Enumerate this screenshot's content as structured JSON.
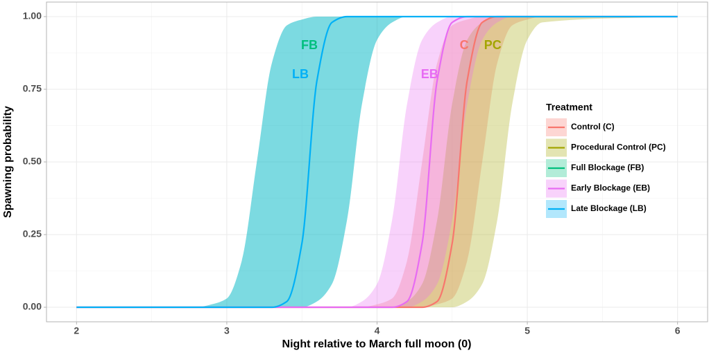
{
  "chart_data": {
    "type": "ribbon-line",
    "xlabel": "Night relative to March full moon (0)",
    "ylabel": "Spawning probability",
    "xlim": [
      1.8,
      6.2
    ],
    "ylim": [
      -0.05,
      1.05
    ],
    "xticks": [
      2,
      3,
      4,
      5,
      6
    ],
    "yticks": [
      {
        "value": 0,
        "label": "0.00"
      },
      {
        "value": 0.25,
        "label": "0.25"
      },
      {
        "value": 0.5,
        "label": "0.50"
      },
      {
        "value": 0.75,
        "label": "0.75"
      },
      {
        "value": 1,
        "label": "1.00"
      }
    ],
    "grid": true,
    "minor_grid": true,
    "legend_title": "Treatment",
    "legend_position": "right",
    "ribbon_opacity": 0.3,
    "x": [
      2,
      2.8,
      2.9,
      3,
      3.1,
      3.2,
      3.3,
      3.4,
      3.5,
      3.6,
      3.7,
      3.8,
      3.9,
      4,
      4.1,
      4.2,
      4.3,
      4.4,
      4.5,
      4.6,
      4.7,
      4.8,
      4.9,
      5,
      5.1,
      6
    ],
    "series": [
      {
        "name": "Control (C)",
        "color": "#F8766D",
        "values": [
          0,
          0,
          0,
          0,
          0,
          0,
          0,
          0,
          0,
          0,
          0,
          0,
          0,
          0,
          0,
          0,
          0,
          0.02,
          0.22,
          0.78,
          0.98,
          1,
          1,
          1,
          1,
          1
        ],
        "lower": [
          0,
          0,
          0,
          0,
          0,
          0,
          0,
          0,
          0,
          0,
          0,
          0,
          0,
          0,
          0,
          0,
          0,
          0.01,
          0.03,
          0.16,
          0.5,
          0.84,
          0.97,
          0.99,
          1,
          1
        ],
        "upper": [
          0,
          0,
          0,
          0,
          0,
          0,
          0,
          0,
          0,
          0,
          0,
          0,
          0,
          0.01,
          0.03,
          0.16,
          0.5,
          0.84,
          0.97,
          0.99,
          1,
          1,
          1,
          1,
          1,
          1
        ]
      },
      {
        "name": "Procedural Control (PC)",
        "color": "#A3A500",
        "values": [
          null,
          null,
          null,
          null,
          null,
          null,
          null,
          null,
          null,
          null,
          null,
          null,
          null,
          null,
          null,
          null,
          null,
          null,
          null,
          null,
          null,
          null,
          null,
          null,
          null,
          null
        ],
        "lower": [
          0,
          0,
          0,
          0,
          0,
          0,
          0,
          0,
          0,
          0,
          0,
          0,
          0,
          0,
          0,
          0,
          0,
          0,
          0,
          0.02,
          0.08,
          0.3,
          0.7,
          0.92,
          0.98,
          1
        ],
        "upper": [
          0,
          0,
          0,
          0,
          0,
          0,
          0,
          0,
          0,
          0,
          0,
          0,
          0,
          0,
          0,
          0.02,
          0.08,
          0.3,
          0.7,
          0.92,
          0.98,
          1,
          1,
          1,
          1,
          1
        ]
      },
      {
        "name": "Full Blockage (FB)",
        "color": "#00BF7D",
        "values": [
          null,
          null,
          null,
          null,
          null,
          null,
          null,
          null,
          null,
          null,
          null,
          null,
          null,
          null,
          null,
          null,
          null,
          null,
          null,
          null,
          null,
          null,
          null,
          null,
          null,
          null
        ],
        "lower": [
          0,
          0,
          0,
          0,
          0,
          0,
          0,
          0,
          0,
          0.02,
          0.08,
          0.3,
          0.7,
          0.92,
          0.98,
          1,
          1,
          1,
          1,
          1,
          1,
          1,
          1,
          1,
          1,
          1
        ],
        "upper": [
          0,
          0,
          0.01,
          0.03,
          0.16,
          0.5,
          0.84,
          0.97,
          0.99,
          1,
          1,
          1,
          1,
          1,
          1,
          1,
          1,
          1,
          1,
          1,
          1,
          1,
          1,
          1,
          1,
          1
        ]
      },
      {
        "name": "Early Blockage (EB)",
        "color": "#E76BF3",
        "values": [
          0,
          0,
          0,
          0,
          0,
          0,
          0,
          0,
          0,
          0,
          0,
          0,
          0,
          0,
          0,
          0.02,
          0.22,
          0.78,
          0.98,
          1,
          1,
          1,
          1,
          1,
          1,
          1
        ],
        "lower": [
          0,
          0,
          0,
          0,
          0,
          0,
          0,
          0,
          0,
          0,
          0,
          0,
          0,
          0,
          0,
          0,
          0.02,
          0.08,
          0.3,
          0.7,
          0.92,
          0.98,
          1,
          1,
          1,
          1
        ],
        "upper": [
          0,
          0,
          0,
          0,
          0,
          0,
          0,
          0,
          0,
          0,
          0,
          0,
          0.02,
          0.08,
          0.3,
          0.7,
          0.92,
          0.98,
          1,
          1,
          1,
          1,
          1,
          1,
          1,
          1
        ]
      },
      {
        "name": "Late Blockage (LB)",
        "color": "#00B0F6",
        "values": [
          0,
          0,
          0,
          0,
          0,
          0,
          0,
          0.02,
          0.22,
          0.78,
          0.98,
          1,
          1,
          1,
          1,
          1,
          1,
          1,
          1,
          1,
          1,
          1,
          1,
          1,
          1,
          1
        ],
        "lower": [
          0,
          0,
          0,
          0,
          0,
          0,
          0,
          0,
          0,
          0.02,
          0.08,
          0.3,
          0.7,
          0.92,
          0.98,
          1,
          1,
          1,
          1,
          1,
          1,
          1,
          1,
          1,
          1,
          1
        ],
        "upper": [
          0,
          0,
          0.01,
          0.03,
          0.16,
          0.5,
          0.84,
          0.97,
          0.99,
          1,
          1,
          1,
          1,
          1,
          1,
          1,
          1,
          1,
          1,
          1,
          1,
          1,
          1,
          1,
          1,
          1
        ]
      }
    ],
    "annotations": [
      {
        "text": "FB",
        "x": 3.55,
        "y": 0.9,
        "color": "#00BF7D"
      },
      {
        "text": "LB",
        "x": 3.49,
        "y": 0.8,
        "color": "#00B0F6"
      },
      {
        "text": "EB",
        "x": 4.35,
        "y": 0.8,
        "color": "#E76BF3"
      },
      {
        "text": "C",
        "x": 4.58,
        "y": 0.9,
        "color": "#F8766D"
      },
      {
        "text": "PC",
        "x": 4.77,
        "y": 0.9,
        "color": "#A3A500"
      }
    ]
  }
}
